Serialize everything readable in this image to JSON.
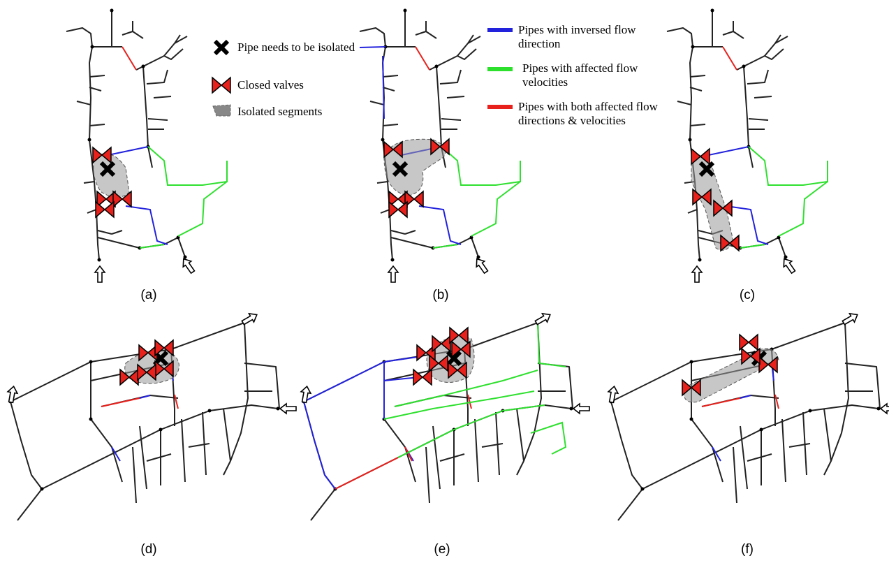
{
  "legend_left": {
    "items": [
      {
        "label": "Pipe needs to be isolated"
      },
      {
        "label": "Closed valves"
      },
      {
        "label": "Isolated segments"
      }
    ]
  },
  "legend_right": {
    "items": [
      {
        "label": "Pipes with inversed flow direction"
      },
      {
        "label": "Pipes with affected flow velocities"
      },
      {
        "label": "Pipes with both affected flow directions & velocities"
      }
    ]
  },
  "panels": [
    {
      "label": "(a)"
    },
    {
      "label": "(b)"
    },
    {
      "label": "(c)"
    },
    {
      "label": "(d)"
    },
    {
      "label": "(e)"
    },
    {
      "label": "(f)"
    }
  ]
}
